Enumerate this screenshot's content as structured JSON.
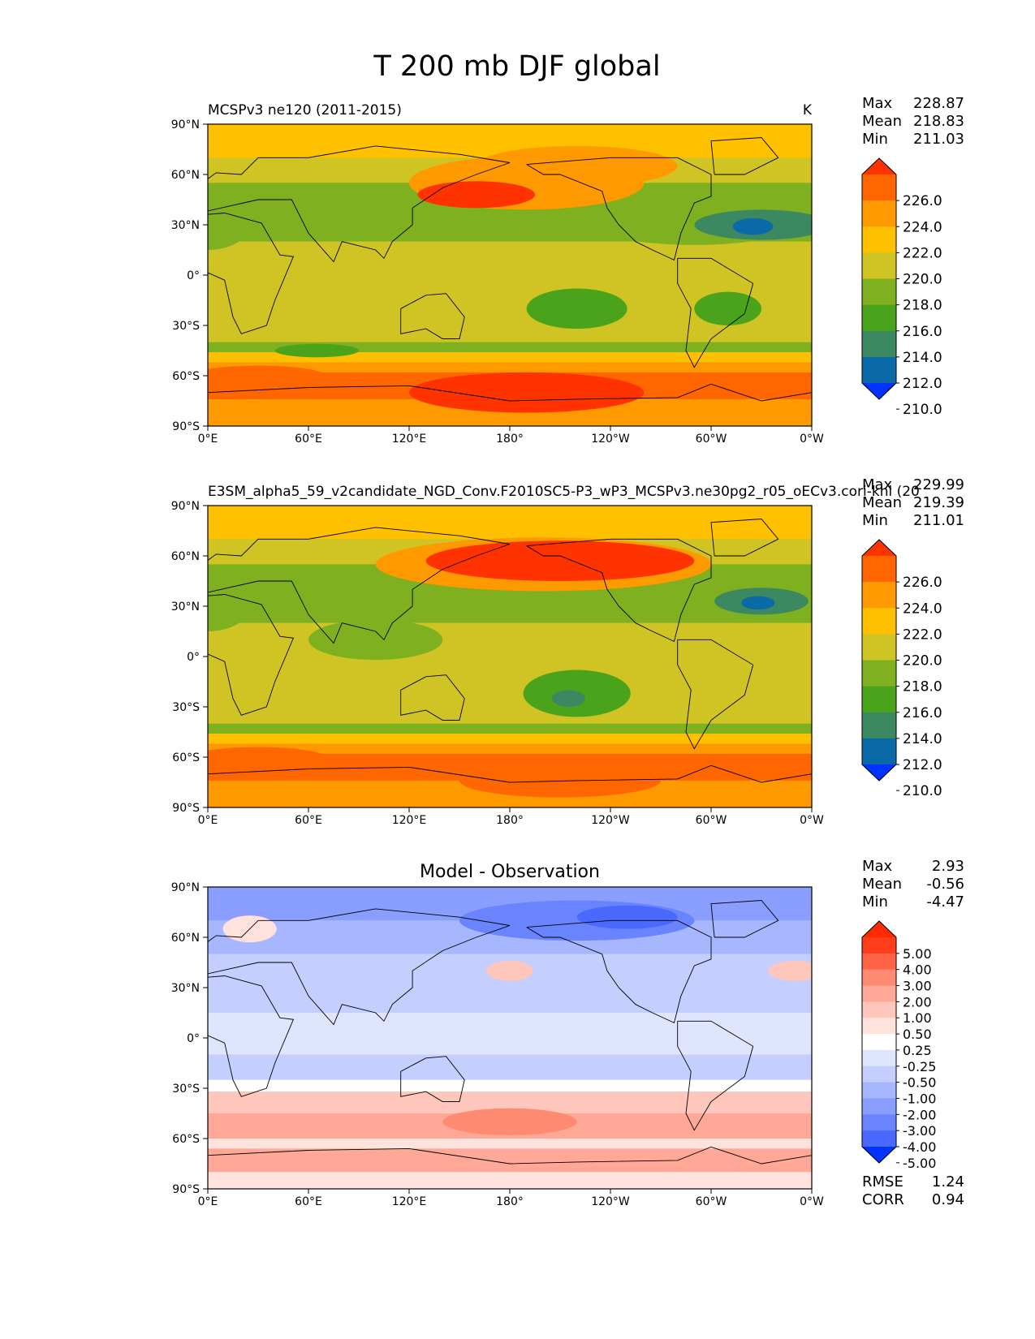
{
  "figure": {
    "title": "T 200 mb DJF global"
  },
  "chart_data": [
    {
      "type": "heatmap",
      "panel": "test",
      "title_left": "MCSPv3 ne120 (2011-2015)",
      "title_right": "K",
      "stats": [
        {
          "label": "Max",
          "value": "228.87"
        },
        {
          "label": "Mean",
          "value": "218.83"
        },
        {
          "label": "Min",
          "value": "211.03"
        }
      ],
      "xticks": [
        "0°E",
        "60°E",
        "120°E",
        "180°",
        "120°W",
        "60°W",
        "0°W"
      ],
      "yticks": [
        "90°N",
        "60°N",
        "30°N",
        "0°",
        "30°S",
        "60°S",
        "90°S"
      ],
      "xlim": [
        0,
        360
      ],
      "ylim": [
        -90,
        90
      ],
      "colorbar": {
        "labels": [
          "226.0",
          "224.0",
          "222.0",
          "220.0",
          "218.0",
          "216.0",
          "214.0",
          "212.0",
          "210.0"
        ],
        "colors": [
          "#ff3300",
          "#ff6600",
          "#ff9900",
          "#ffc000",
          "#d0c424",
          "#7fb020",
          "#4aa31a",
          "#3c8860",
          "#0a6aa8",
          "#0033ff"
        ]
      }
    },
    {
      "type": "heatmap",
      "panel": "reference",
      "title_left": "E3SM_alpha5_59_v2candidate_NGD_Conv.F2010SC5-P3_wP3_MCSPv3.ne30pg2_r05_oECv3.cori-knl (20",
      "title_right": "",
      "stats": [
        {
          "label": "Max",
          "value": "229.99"
        },
        {
          "label": "Mean",
          "value": "219.39"
        },
        {
          "label": "Min",
          "value": "211.01"
        }
      ],
      "xticks": [
        "0°E",
        "60°E",
        "120°E",
        "180°",
        "120°W",
        "60°W",
        "0°W"
      ],
      "yticks": [
        "90°N",
        "60°N",
        "30°N",
        "0°",
        "30°S",
        "60°S",
        "90°S"
      ],
      "xlim": [
        0,
        360
      ],
      "ylim": [
        -90,
        90
      ],
      "colorbar": {
        "labels": [
          "226.0",
          "224.0",
          "222.0",
          "220.0",
          "218.0",
          "216.0",
          "214.0",
          "212.0",
          "210.0"
        ],
        "colors": [
          "#ff3300",
          "#ff6600",
          "#ff9900",
          "#ffc000",
          "#d0c424",
          "#7fb020",
          "#4aa31a",
          "#3c8860",
          "#0a6aa8",
          "#0033ff"
        ]
      }
    },
    {
      "type": "heatmap",
      "panel": "difference",
      "title_center": "Model - Observation",
      "stats": [
        {
          "label": "Max",
          "value": "2.93"
        },
        {
          "label": "Mean",
          "value": "-0.56"
        },
        {
          "label": "Min",
          "value": "-4.47"
        }
      ],
      "metrics": [
        {
          "label": "RMSE",
          "value": "1.24"
        },
        {
          "label": "CORR",
          "value": "0.94"
        }
      ],
      "xticks": [
        "0°E",
        "60°E",
        "120°E",
        "180°",
        "120°W",
        "60°W",
        "0°W"
      ],
      "yticks": [
        "90°N",
        "60°N",
        "30°N",
        "0°",
        "30°S",
        "60°S",
        "90°S"
      ],
      "xlim": [
        0,
        360
      ],
      "ylim": [
        -90,
        90
      ],
      "colorbar": {
        "labels": [
          "5.00",
          "4.00",
          "3.00",
          "2.00",
          "1.00",
          "0.50",
          "0.25",
          "-0.25",
          "-0.50",
          "-1.00",
          "-2.00",
          "-3.00",
          "-4.00",
          "-5.00"
        ],
        "colors": [
          "#ff2a00",
          "#ff3d1a",
          "#ff6347",
          "#ff8a72",
          "#ffa898",
          "#ffc6bc",
          "#ffe2dc",
          "#ffffff",
          "#dfe4ff",
          "#c4ceff",
          "#a6b6ff",
          "#8a9eff",
          "#6a84ff",
          "#4a6aff",
          "#0033ff"
        ]
      }
    }
  ]
}
